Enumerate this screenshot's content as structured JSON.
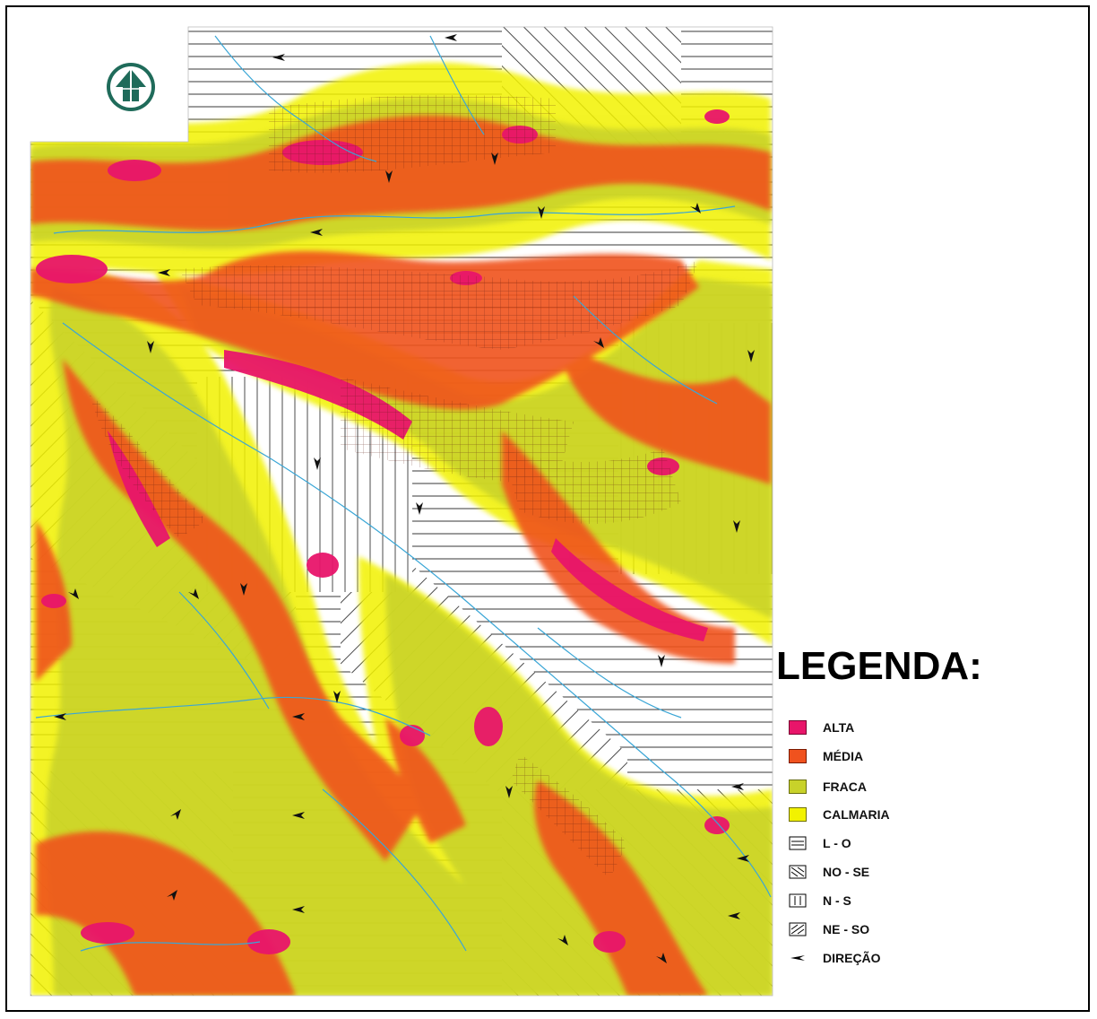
{
  "legend": {
    "title": "LEGENDA:",
    "items": [
      {
        "label": "ALTA",
        "icon": "swatch-alta",
        "color": "#e8156a"
      },
      {
        "label": "MÉDIA",
        "icon": "swatch-media",
        "color": "#f0521e"
      },
      {
        "label": "FRACA",
        "icon": "swatch-fraca",
        "color": "#c8d22a"
      },
      {
        "label": "CALMARIA",
        "icon": "swatch-calmaria",
        "color": "#f2f200"
      },
      {
        "label": "L - O",
        "icon": "hatch-horizontal-icon"
      },
      {
        "label": "NO - SE",
        "icon": "hatch-diagonal-nw-se-icon"
      },
      {
        "label": "N - S",
        "icon": "hatch-vertical-icon"
      },
      {
        "label": "NE - SO",
        "icon": "hatch-diagonal-ne-sw-icon"
      },
      {
        "label": "DIREÇÃO",
        "icon": "direction-arrow-icon"
      }
    ]
  },
  "colors": {
    "alta": "#e8156a",
    "media": "#f0521e",
    "fraca": "#c8d22a",
    "calmaria": "#f2f200",
    "rivers": "#3aa6d6"
  },
  "compass": {
    "icon": "north-arrow-icon"
  }
}
